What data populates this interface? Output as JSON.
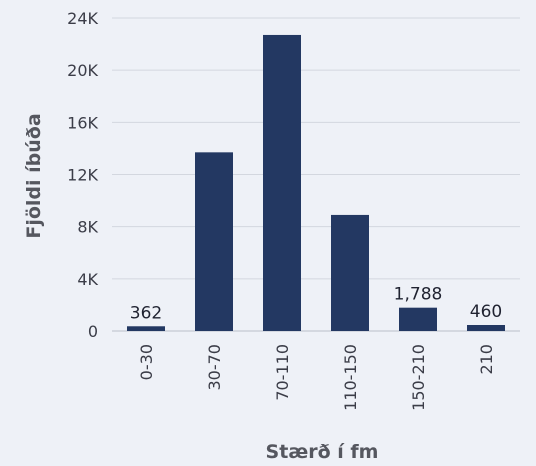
{
  "chart_data": {
    "type": "bar",
    "title": "",
    "xlabel": "Stærð í fm",
    "ylabel": "Fjöldi íbúða",
    "categories": [
      "0-30",
      "30-70",
      "70-110",
      "110-150",
      "150-210",
      "210"
    ],
    "values": [
      362,
      13700,
      22700,
      8900,
      1788,
      460
    ],
    "data_labels": [
      "362",
      "",
      "",
      "",
      "1,788",
      "460"
    ],
    "ylim": [
      0,
      24000
    ],
    "yticks": [
      0,
      4000,
      8000,
      12000,
      16000,
      20000,
      24000
    ],
    "ytick_labels": [
      "0",
      "4K",
      "8K",
      "12K",
      "16K",
      "20K",
      "24K"
    ],
    "grid": true,
    "legend": "none",
    "colors": {
      "bar": "#233862",
      "grid": "#d3d7df",
      "background": "#eef1f7"
    }
  }
}
